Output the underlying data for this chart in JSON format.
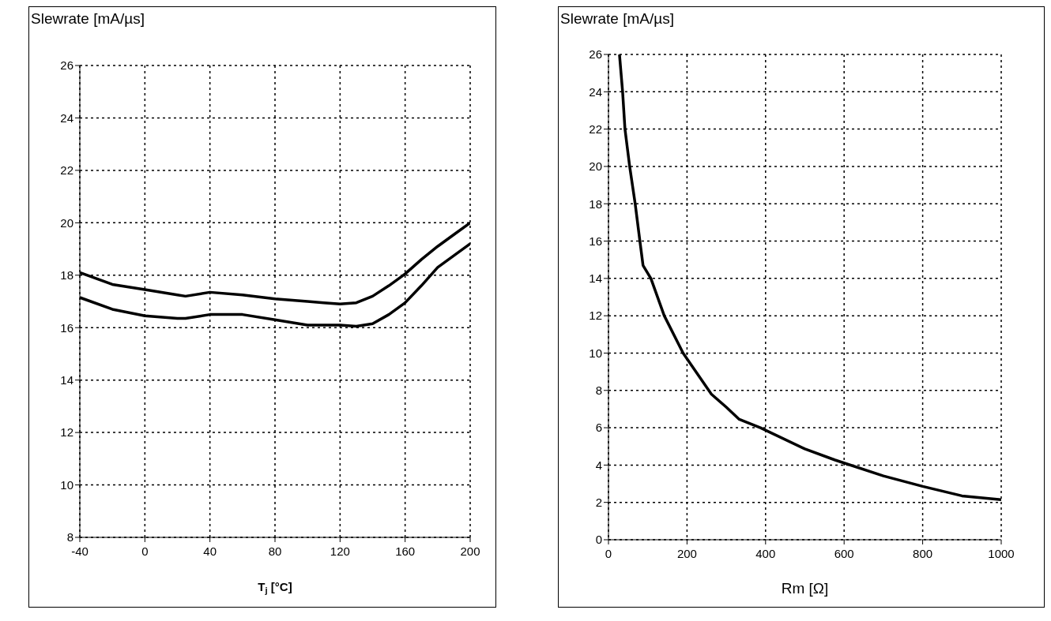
{
  "chart_data": [
    {
      "type": "line",
      "ylabel": "Slewrate [mA/µs]",
      "xlabel": "T$_{j}$ [°C]",
      "xlim": [
        -40,
        200
      ],
      "xticks": [
        -40,
        0,
        40,
        80,
        120,
        160,
        200
      ],
      "ylim": [
        8,
        26
      ],
      "yticks": [
        8,
        10,
        12,
        14,
        16,
        18,
        20,
        22,
        24,
        26
      ],
      "grid": true,
      "marker": "none",
      "x": [
        -40,
        -20,
        0,
        20,
        25,
        40,
        60,
        80,
        100,
        110,
        120,
        130,
        140,
        150,
        160,
        170,
        180,
        190,
        200
      ],
      "series": [
        {
          "color": "#000000",
          "values": [
            18.1,
            17.65,
            17.45,
            17.25,
            17.2,
            17.35,
            17.25,
            17.1,
            17.0,
            16.95,
            16.9,
            16.95,
            17.2,
            17.6,
            18.05,
            18.6,
            19.1,
            19.55,
            20.0
          ]
        },
        {
          "color": "#000000",
          "values": [
            17.15,
            16.7,
            16.45,
            16.35,
            16.35,
            16.5,
            16.5,
            16.3,
            16.1,
            16.1,
            16.1,
            16.05,
            16.15,
            16.5,
            16.95,
            17.6,
            18.3,
            18.75,
            19.2
          ]
        }
      ]
    },
    {
      "type": "line",
      "ylabel": "Slewrate [mA/µs]",
      "xlabel": "Rm [Ω]",
      "xlim": [
        0,
        1000
      ],
      "xticks": [
        0,
        200,
        400,
        600,
        800,
        1000
      ],
      "ylim": [
        0,
        26
      ],
      "yticks": [
        0,
        2,
        4,
        6,
        8,
        10,
        12,
        14,
        16,
        18,
        20,
        22,
        24,
        26
      ],
      "grid": true,
      "marker": "none",
      "x": [
        28,
        36,
        42,
        54,
        68,
        80,
        88,
        108,
        142,
        190,
        262,
        300,
        333,
        387,
        500,
        577,
        700,
        800,
        900,
        1000
      ],
      "series": [
        {
          "color": "#000000",
          "values": [
            26,
            24,
            22,
            20,
            18,
            16,
            14.7,
            14,
            12,
            10,
            7.8,
            7.1,
            6.45,
            6,
            4.87,
            4.27,
            3.42,
            2.86,
            2.35,
            2.14
          ]
        }
      ]
    }
  ]
}
